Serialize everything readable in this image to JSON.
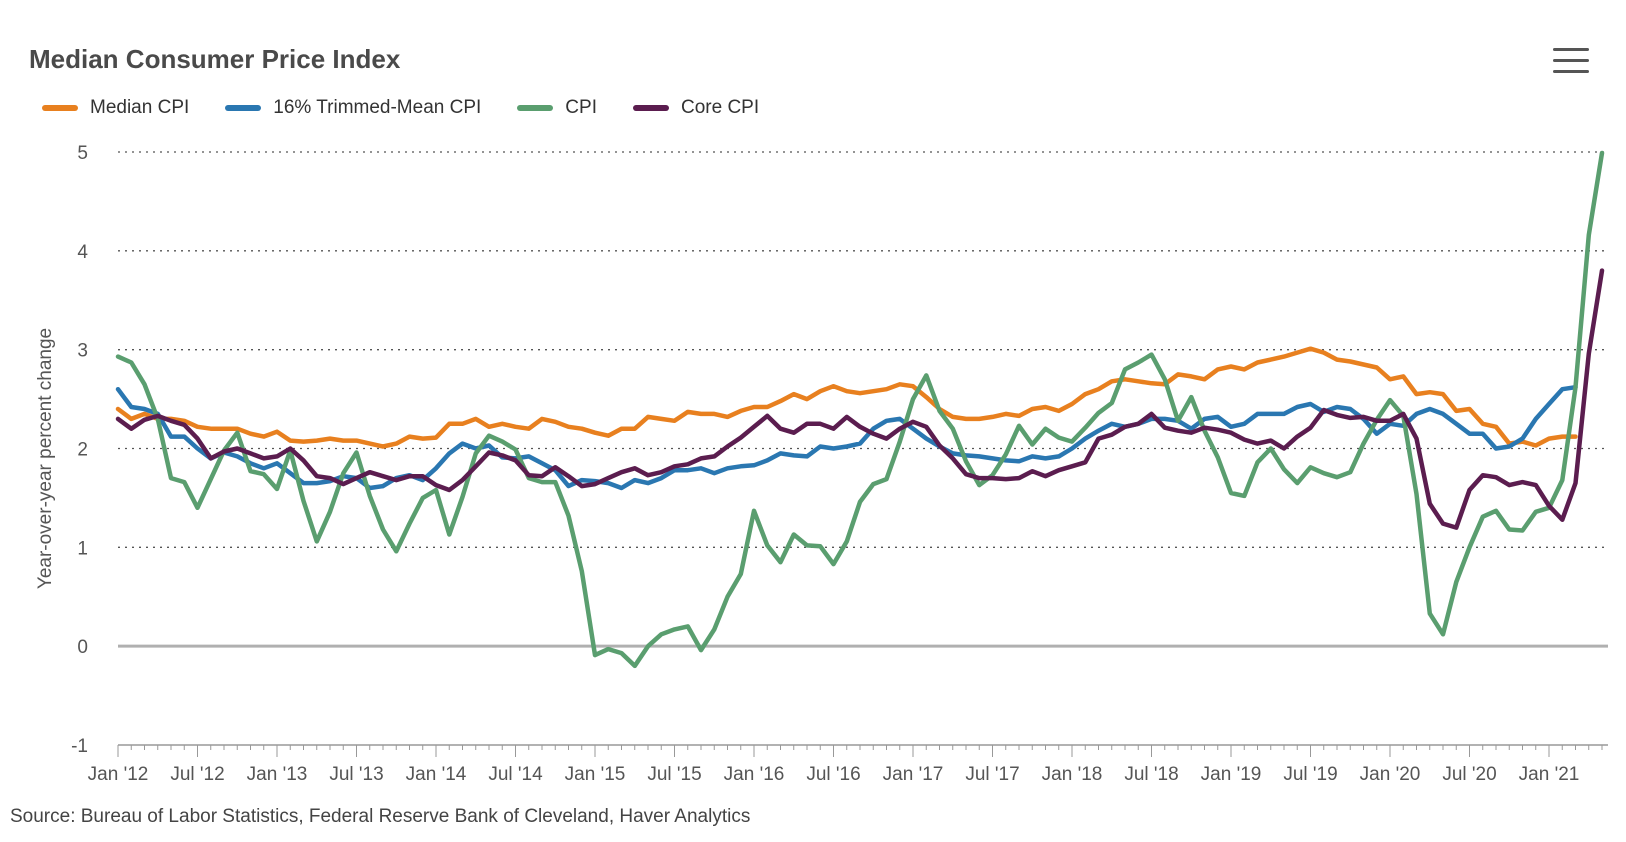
{
  "header": {
    "title": "Median Consumer Price Index",
    "menu_icon": "hamburger-menu-icon"
  },
  "source": "Source: Bureau of Labor Statistics, Federal Reserve Bank of Cleveland, Haver Analytics",
  "chart_data": {
    "type": "line",
    "title": "Median Consumer Price Index",
    "xlabel": "",
    "ylabel": "Year-over-year percent change",
    "ylim": [
      -1,
      5
    ],
    "yticks": [
      -1,
      0,
      1,
      2,
      3,
      4,
      5
    ],
    "x_start": "2012-01",
    "x_end": "2021-05",
    "xticks": [
      "Jan '12",
      "Jul '12",
      "Jan '13",
      "Jul '13",
      "Jan '14",
      "Jul '14",
      "Jan '15",
      "Jul '15",
      "Jan '16",
      "Jul '16",
      "Jan '17",
      "Jul '17",
      "Jan '18",
      "Jul '18",
      "Jan '19",
      "Jul '19",
      "Jan '20",
      "Jul '20",
      "Jan '21"
    ],
    "grid": "horizontal dotted",
    "legend_position": "top-left",
    "series": [
      {
        "name": "Median CPI",
        "color": "#e8801f",
        "values": [
          2.4,
          2.3,
          2.35,
          2.3,
          2.3,
          2.28,
          2.22,
          2.2,
          2.2,
          2.2,
          2.15,
          2.12,
          2.17,
          2.08,
          2.07,
          2.08,
          2.1,
          2.08,
          2.08,
          2.05,
          2.02,
          2.05,
          2.12,
          2.1,
          2.11,
          2.25,
          2.25,
          2.3,
          2.22,
          2.25,
          2.22,
          2.2,
          2.3,
          2.27,
          2.22,
          2.2,
          2.16,
          2.13,
          2.2,
          2.2,
          2.32,
          2.3,
          2.28,
          2.37,
          2.35,
          2.35,
          2.32,
          2.38,
          2.42,
          2.42,
          2.48,
          2.55,
          2.5,
          2.58,
          2.63,
          2.58,
          2.56,
          2.58,
          2.6,
          2.65,
          2.63,
          2.52,
          2.4,
          2.32,
          2.3,
          2.3,
          2.32,
          2.35,
          2.33,
          2.4,
          2.42,
          2.38,
          2.45,
          2.55,
          2.6,
          2.68,
          2.7,
          2.68,
          2.66,
          2.65,
          2.75,
          2.73,
          2.7,
          2.8,
          2.83,
          2.8,
          2.87,
          2.9,
          2.93,
          2.97,
          3.01,
          2.97,
          2.9,
          2.88,
          2.85,
          2.82,
          2.7,
          2.73,
          2.55,
          2.57,
          2.55,
          2.38,
          2.4,
          2.25,
          2.22,
          2.05,
          2.07,
          2.03,
          2.1,
          2.12,
          2.12
        ]
      },
      {
        "name": "16% Trimmed-Mean CPI",
        "color": "#2a77b1",
        "values": [
          2.6,
          2.42,
          2.4,
          2.35,
          2.12,
          2.12,
          2.0,
          1.9,
          1.96,
          1.92,
          1.85,
          1.8,
          1.85,
          1.75,
          1.65,
          1.65,
          1.67,
          1.72,
          1.7,
          1.6,
          1.62,
          1.7,
          1.73,
          1.68,
          1.8,
          1.95,
          2.05,
          2.0,
          2.03,
          1.91,
          1.9,
          1.92,
          1.85,
          1.78,
          1.62,
          1.68,
          1.67,
          1.65,
          1.6,
          1.68,
          1.65,
          1.7,
          1.78,
          1.78,
          1.8,
          1.75,
          1.8,
          1.82,
          1.83,
          1.88,
          1.95,
          1.93,
          1.92,
          2.02,
          2.0,
          2.02,
          2.05,
          2.2,
          2.28,
          2.3,
          2.2,
          2.1,
          2.02,
          1.95,
          1.93,
          1.92,
          1.9,
          1.88,
          1.87,
          1.92,
          1.9,
          1.92,
          2.0,
          2.1,
          2.18,
          2.25,
          2.22,
          2.25,
          2.3,
          2.3,
          2.28,
          2.2,
          2.3,
          2.32,
          2.22,
          2.25,
          2.35,
          2.35,
          2.35,
          2.42,
          2.45,
          2.37,
          2.42,
          2.4,
          2.3,
          2.15,
          2.25,
          2.23,
          2.35,
          2.4,
          2.35,
          2.25,
          2.15,
          2.15,
          2.0,
          2.02,
          2.1,
          2.3,
          2.45,
          2.6,
          2.62
        ]
      },
      {
        "name": "CPI",
        "color": "#5a9e6f",
        "values": [
          2.93,
          2.87,
          2.65,
          2.3,
          1.7,
          1.66,
          1.4,
          1.69,
          1.98,
          2.16,
          1.77,
          1.74,
          1.59,
          1.98,
          1.47,
          1.06,
          1.36,
          1.75,
          1.96,
          1.52,
          1.18,
          0.96,
          1.24,
          1.5,
          1.58,
          1.13,
          1.51,
          1.95,
          2.13,
          2.07,
          1.99,
          1.7,
          1.66,
          1.66,
          1.32,
          0.76,
          -0.09,
          -0.03,
          -0.07,
          -0.2,
          0.0,
          0.12,
          0.17,
          0.2,
          -0.04,
          0.17,
          0.5,
          0.73,
          1.37,
          1.02,
          0.85,
          1.13,
          1.02,
          1.01,
          0.83,
          1.06,
          1.46,
          1.64,
          1.69,
          2.07,
          2.5,
          2.74,
          2.38,
          2.2,
          1.87,
          1.63,
          1.73,
          1.94,
          2.23,
          2.04,
          2.2,
          2.11,
          2.07,
          2.21,
          2.36,
          2.46,
          2.8,
          2.87,
          2.95,
          2.7,
          2.28,
          2.52,
          2.18,
          1.91,
          1.55,
          1.52,
          1.86,
          2.0,
          1.79,
          1.65,
          1.81,
          1.75,
          1.71,
          1.76,
          2.05,
          2.29,
          2.49,
          2.33,
          1.54,
          0.33,
          0.12,
          0.65,
          1.0,
          1.31,
          1.37,
          1.18,
          1.17,
          1.36,
          1.4,
          1.68,
          2.62,
          4.16,
          4.99
        ]
      },
      {
        "name": "Core CPI",
        "color": "#5b1d4f",
        "values": [
          2.3,
          2.2,
          2.29,
          2.33,
          2.28,
          2.24,
          2.1,
          1.9,
          1.97,
          2.0,
          1.95,
          1.9,
          1.92,
          2.0,
          1.88,
          1.72,
          1.7,
          1.64,
          1.7,
          1.76,
          1.72,
          1.68,
          1.72,
          1.72,
          1.63,
          1.58,
          1.68,
          1.82,
          1.96,
          1.93,
          1.88,
          1.73,
          1.72,
          1.81,
          1.72,
          1.62,
          1.64,
          1.7,
          1.76,
          1.8,
          1.73,
          1.76,
          1.82,
          1.84,
          1.9,
          1.92,
          2.02,
          2.11,
          2.22,
          2.33,
          2.2,
          2.16,
          2.25,
          2.25,
          2.2,
          2.32,
          2.22,
          2.15,
          2.1,
          2.2,
          2.27,
          2.22,
          2.03,
          1.9,
          1.74,
          1.7,
          1.7,
          1.69,
          1.7,
          1.77,
          1.72,
          1.78,
          1.82,
          1.86,
          2.1,
          2.14,
          2.22,
          2.25,
          2.35,
          2.21,
          2.18,
          2.16,
          2.21,
          2.19,
          2.16,
          2.09,
          2.05,
          2.08,
          2.0,
          2.12,
          2.21,
          2.39,
          2.34,
          2.31,
          2.32,
          2.28,
          2.28,
          2.35,
          2.1,
          1.44,
          1.24,
          1.2,
          1.58,
          1.73,
          1.71,
          1.63,
          1.66,
          1.63,
          1.42,
          1.28,
          1.65,
          2.96,
          3.8
        ]
      }
    ]
  }
}
